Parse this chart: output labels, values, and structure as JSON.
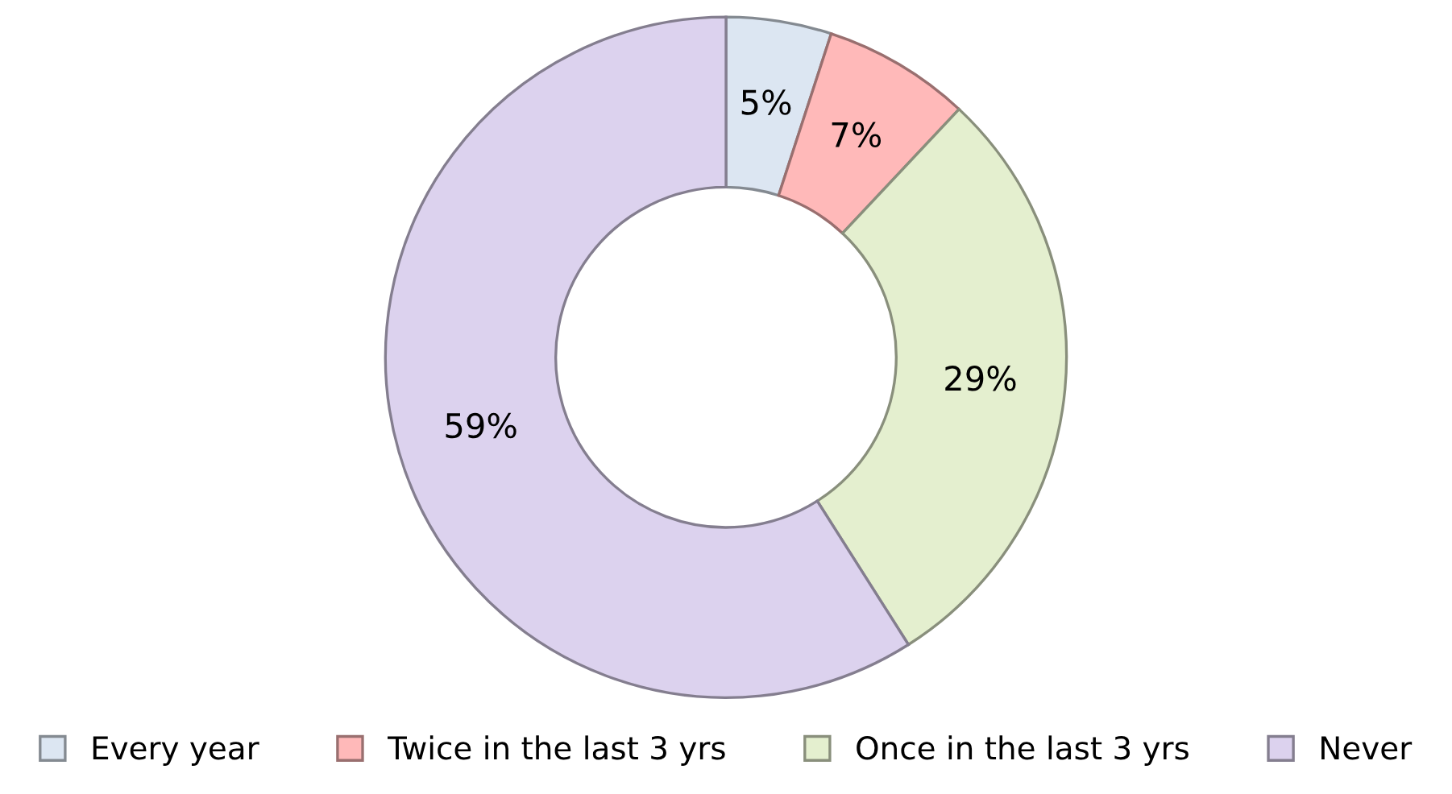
{
  "chart_data": {
    "type": "donut",
    "categories": [
      "Every year",
      "Twice in the last 3 yrs",
      "Once in the last 3 yrs",
      "Never"
    ],
    "values": [
      5,
      7,
      29,
      59
    ],
    "value_labels": [
      "5%",
      "7%",
      "29%",
      "59%"
    ],
    "colors": [
      "#dce6f2",
      "#ffb9b9",
      "#e4efcf",
      "#dcd2ee"
    ],
    "legend": "bottom"
  }
}
